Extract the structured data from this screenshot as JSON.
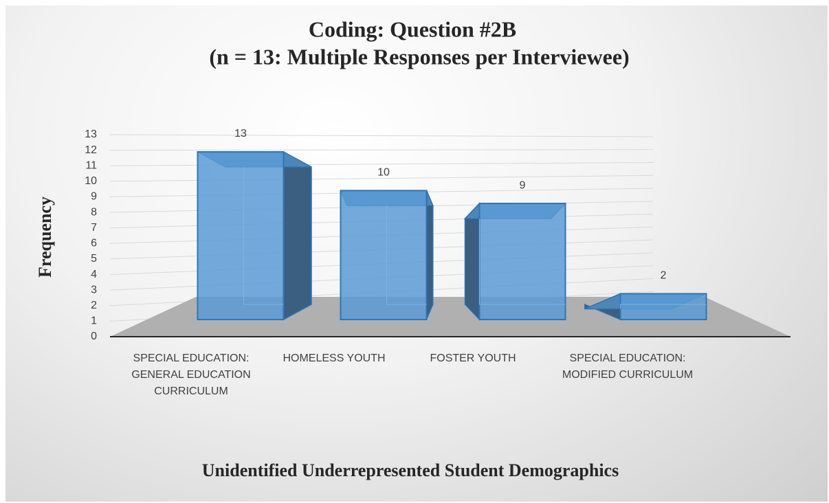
{
  "chart_data": {
    "type": "bar3d",
    "title": "Coding: Question #2B",
    "subtitle": "(n = 13: Multiple Responses per Interviewee)",
    "y_axis_label": "Frequency",
    "x_axis_label": "Unidentified Underrepresented Student Demographics",
    "categories": [
      "SPECIAL EDUCATION: GENERAL EDUCATION CURRICULUM",
      "HOMELESS YOUTH",
      "FOSTER YOUTH",
      "SPECIAL EDUCATION: MODIFIED CURRICULUM"
    ],
    "values": [
      13,
      10,
      9,
      2
    ],
    "color": "#5b9bd5",
    "ylim": [
      0,
      13
    ],
    "yticks": [
      0,
      1,
      2,
      3,
      4,
      5,
      6,
      7,
      8,
      9,
      10,
      11,
      12,
      13
    ],
    "grid": true
  }
}
